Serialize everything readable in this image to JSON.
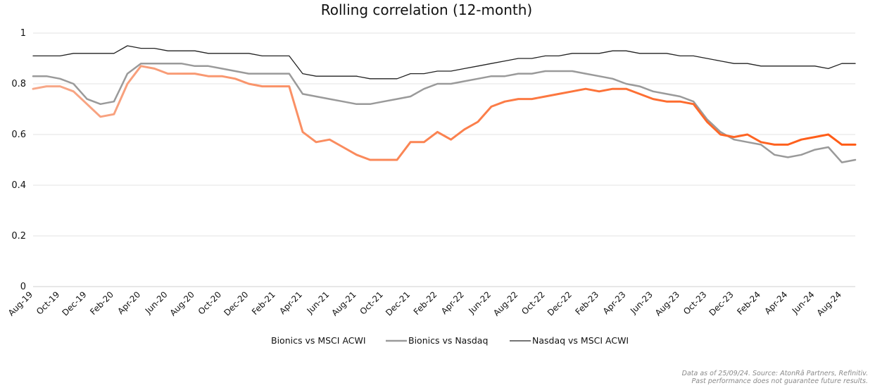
{
  "chart_data": {
    "type": "line",
    "title": "Rolling correlation (12-month)",
    "ylim": [
      0,
      1
    ],
    "yticks": [
      "0",
      "0.2",
      "0.4",
      "0.6",
      "0.8",
      "1"
    ],
    "ytick_values": [
      0,
      0.2,
      0.4,
      0.6,
      0.8,
      1
    ],
    "grid": "horizontal",
    "legend_position": "bottom",
    "x_start": "2019-08",
    "x_end": "2024-09",
    "xtick_labels": [
      "Aug-19",
      "Oct-19",
      "Dec-19",
      "Feb-20",
      "Apr-20",
      "Jun-20",
      "Aug-20",
      "Oct-20",
      "Dec-20",
      "Feb-21",
      "Apr-21",
      "Jun-21",
      "Aug-21",
      "Oct-21",
      "Dec-21",
      "Feb-22",
      "Apr-22",
      "Jun-22",
      "Aug-22",
      "Oct-22",
      "Dec-22",
      "Feb-23",
      "Apr-23",
      "Jun-23",
      "Aug-23",
      "Oct-23",
      "Dec-23",
      "Feb-24",
      "Apr-24",
      "Jun-24",
      "Aug-24"
    ],
    "x": [
      "2019-08",
      "2019-09",
      "2019-10",
      "2019-11",
      "2019-12",
      "2020-01",
      "2020-02",
      "2020-03",
      "2020-04",
      "2020-05",
      "2020-06",
      "2020-07",
      "2020-08",
      "2020-09",
      "2020-10",
      "2020-11",
      "2020-12",
      "2021-01",
      "2021-02",
      "2021-03",
      "2021-04",
      "2021-05",
      "2021-06",
      "2021-07",
      "2021-08",
      "2021-09",
      "2021-10",
      "2021-11",
      "2021-12",
      "2022-01",
      "2022-02",
      "2022-03",
      "2022-04",
      "2022-05",
      "2022-06",
      "2022-07",
      "2022-08",
      "2022-09",
      "2022-10",
      "2022-11",
      "2022-12",
      "2023-01",
      "2023-02",
      "2023-03",
      "2023-04",
      "2023-05",
      "2023-06",
      "2023-07",
      "2023-08",
      "2023-09",
      "2023-10",
      "2023-11",
      "2023-12",
      "2024-01",
      "2024-02",
      "2024-03",
      "2024-04",
      "2024-05",
      "2024-06",
      "2024-07",
      "2024-08",
      "2024-09"
    ],
    "series": [
      {
        "name": "Bionics vs MSCI ACWI",
        "color": "#ff5a14",
        "color_start": "#f7a98a",
        "gradient": true,
        "values": [
          0.78,
          0.79,
          0.79,
          0.77,
          0.72,
          0.67,
          0.68,
          0.8,
          0.87,
          0.86,
          0.84,
          0.84,
          0.84,
          0.83,
          0.83,
          0.82,
          0.8,
          0.79,
          0.79,
          0.79,
          0.61,
          0.57,
          0.58,
          0.55,
          0.52,
          0.5,
          0.5,
          0.5,
          0.57,
          0.57,
          0.61,
          0.58,
          0.62,
          0.65,
          0.71,
          0.73,
          0.74,
          0.74,
          0.75,
          0.76,
          0.77,
          0.78,
          0.77,
          0.78,
          0.78,
          0.76,
          0.74,
          0.73,
          0.73,
          0.72,
          0.65,
          0.6,
          0.59,
          0.6,
          0.57,
          0.56,
          0.56,
          0.58,
          0.59,
          0.6,
          0.56,
          0.56
        ]
      },
      {
        "name": "Bionics vs Nasdaq",
        "color": "#9a9a9a",
        "gradient": false,
        "values": [
          0.83,
          0.83,
          0.82,
          0.8,
          0.74,
          0.72,
          0.73,
          0.84,
          0.88,
          0.88,
          0.88,
          0.88,
          0.87,
          0.87,
          0.86,
          0.85,
          0.84,
          0.84,
          0.84,
          0.84,
          0.76,
          0.75,
          0.74,
          0.73,
          0.72,
          0.72,
          0.73,
          0.74,
          0.75,
          0.78,
          0.8,
          0.8,
          0.81,
          0.82,
          0.83,
          0.83,
          0.84,
          0.84,
          0.85,
          0.85,
          0.85,
          0.84,
          0.83,
          0.82,
          0.8,
          0.79,
          0.77,
          0.76,
          0.75,
          0.73,
          0.66,
          0.61,
          0.58,
          0.57,
          0.56,
          0.52,
          0.51,
          0.52,
          0.54,
          0.55,
          0.49,
          0.5
        ]
      },
      {
        "name": "Nasdaq vs MSCI ACWI",
        "color": "#222222",
        "gradient": false,
        "values": [
          0.91,
          0.91,
          0.91,
          0.92,
          0.92,
          0.92,
          0.92,
          0.95,
          0.94,
          0.94,
          0.93,
          0.93,
          0.93,
          0.92,
          0.92,
          0.92,
          0.92,
          0.91,
          0.91,
          0.91,
          0.84,
          0.83,
          0.83,
          0.83,
          0.83,
          0.82,
          0.82,
          0.82,
          0.84,
          0.84,
          0.85,
          0.85,
          0.86,
          0.87,
          0.88,
          0.89,
          0.9,
          0.9,
          0.91,
          0.91,
          0.92,
          0.92,
          0.92,
          0.93,
          0.93,
          0.92,
          0.92,
          0.92,
          0.91,
          0.91,
          0.9,
          0.89,
          0.88,
          0.88,
          0.87,
          0.87,
          0.87,
          0.87,
          0.87,
          0.86,
          0.88,
          0.88
        ]
      }
    ]
  },
  "footnote": {
    "line1": "Data as of 25/09/24. Source: AtonRâ Partners, Refinitiv.",
    "line2": "Past performance does not guarantee future results."
  }
}
